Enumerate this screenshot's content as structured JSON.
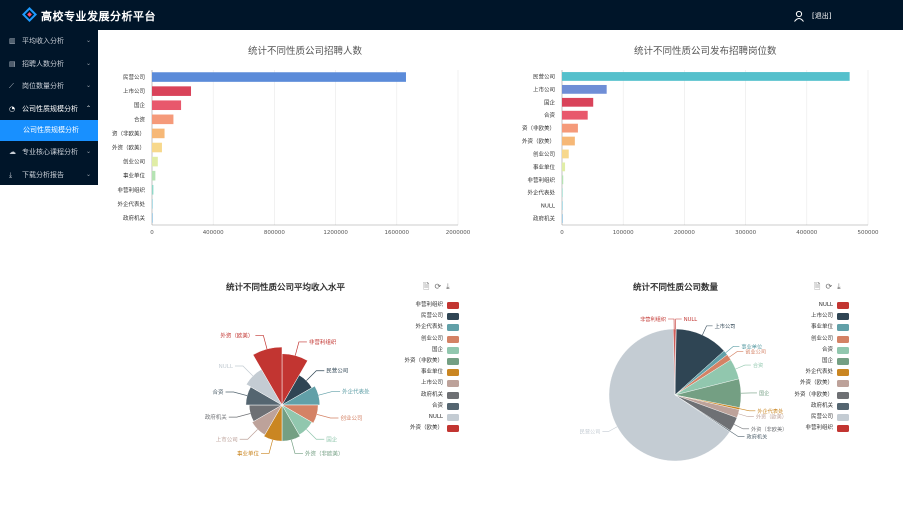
{
  "header": {
    "title": "高校专业发展分析平台",
    "logout_label": "[退出]"
  },
  "sidebar": {
    "items": [
      {
        "label": "平均收入分析",
        "icon": "bar-chart-icon"
      },
      {
        "label": "招聘人数分析",
        "icon": "chart-icon"
      },
      {
        "label": "岗位数量分析",
        "icon": "line-chart-icon"
      },
      {
        "label": "公司性质规模分析",
        "icon": "pie-chart-icon",
        "open": true,
        "children": [
          {
            "label": "公司性质规模分析",
            "active": true
          }
        ]
      },
      {
        "label": "专业核心课程分析",
        "icon": "cloud-icon"
      },
      {
        "label": "下载分析报告",
        "icon": "download-icon"
      }
    ]
  },
  "chart_data": [
    {
      "type": "bar",
      "title": "统计不同性质公司招聘人数",
      "categories": [
        "民营公司",
        "上市公司",
        "国企",
        "合资",
        "资（非欧美）",
        "外资（欧美）",
        "创业公司",
        "事业单位",
        "非营利组织",
        "外企代表处",
        "政府机关"
      ],
      "values": [
        1660000,
        255000,
        190000,
        140000,
        82000,
        65000,
        38000,
        22000,
        9000,
        4000,
        2000
      ],
      "colors": [
        "#5b8bd9",
        "#d9435a",
        "#e8586c",
        "#f59a7a",
        "#f6b877",
        "#f7d88c",
        "#e0eda6",
        "#b5e3b3",
        "#8fd8c8",
        "#7cc7d8",
        "#6fb0d8"
      ],
      "xticks": [
        "0",
        "400000",
        "800000",
        "1200000",
        "1600000",
        "2000000"
      ],
      "xlim": [
        0,
        2000000
      ]
    },
    {
      "type": "bar",
      "title": "统计不同性质公司发布招聘岗位数",
      "categories": [
        "民营公司",
        "上市公司",
        "国企",
        "合资",
        "资（非欧美）",
        "外资（欧美）",
        "创业公司",
        "事业单位",
        "非营利组织",
        "外企代表处",
        "NULL",
        "政府机关"
      ],
      "values": [
        470000,
        73000,
        51000,
        42000,
        26000,
        21000,
        11000,
        5000,
        2000,
        1000,
        500,
        300
      ],
      "colors": [
        "#55c0cc",
        "#6f8ed6",
        "#d9435a",
        "#e8586c",
        "#f59a7a",
        "#f6b877",
        "#f7d88c",
        "#e0eda6",
        "#b5e3b3",
        "#8fd8c8",
        "#7cc7d8",
        "#6fb0d8"
      ],
      "xticks": [
        "0",
        "100000",
        "200000",
        "300000",
        "400000",
        "500000"
      ],
      "xlim": [
        0,
        500000
      ]
    },
    {
      "type": "pie",
      "title": "统计不同性质公司平均收入水平",
      "slices": [
        {
          "name": "非营利组织",
          "value": 13,
          "color": "#c23531"
        },
        {
          "name": "民营公司",
          "value": 8,
          "color": "#2f4554"
        },
        {
          "name": "外企代表处",
          "value": 9,
          "color": "#61a0a8"
        },
        {
          "name": "创业公司",
          "value": 8.5,
          "color": "#d48265"
        },
        {
          "name": "国企",
          "value": 8,
          "color": "#91c7ae"
        },
        {
          "name": "外资（非欧美）",
          "value": 8.5,
          "color": "#749f83"
        },
        {
          "name": "事业单位",
          "value": 8.5,
          "color": "#ca8622"
        },
        {
          "name": "上市公司",
          "value": 8,
          "color": "#bda29a"
        },
        {
          "name": "政府机关",
          "value": 7.5,
          "color": "#6e7074"
        },
        {
          "name": "合资",
          "value": 8.5,
          "color": "#546570"
        },
        {
          "name": "NULL",
          "value": 10,
          "color": "#c4ccd3"
        },
        {
          "name": "外资（欧美）",
          "value": 15,
          "color": "#c23531"
        }
      ]
    },
    {
      "type": "pie",
      "title": "统计不同性质公司数量",
      "slices": [
        {
          "name": "NULL",
          "value": 0.3,
          "color": "#c23531"
        },
        {
          "name": "上市公司",
          "value": 13,
          "color": "#2f4554"
        },
        {
          "name": "事业单位",
          "value": 1.2,
          "color": "#61a0a8"
        },
        {
          "name": "创业公司",
          "value": 1.5,
          "color": "#d48265"
        },
        {
          "name": "合资",
          "value": 5,
          "color": "#91c7ae"
        },
        {
          "name": "国企",
          "value": 7,
          "color": "#749f83"
        },
        {
          "name": "外企代表处",
          "value": 0.5,
          "color": "#ca8622"
        },
        {
          "name": "外资（欧美）",
          "value": 2,
          "color": "#bda29a"
        },
        {
          "name": "外资（非欧美）",
          "value": 3.5,
          "color": "#6e7074"
        },
        {
          "name": "政府机关",
          "value": 0.3,
          "color": "#546570"
        },
        {
          "name": "民营公司",
          "value": 65,
          "color": "#c4ccd3"
        },
        {
          "name": "非营利组织",
          "value": 0.4,
          "color": "#c23531"
        }
      ]
    }
  ],
  "toolbox": {
    "save_icon": "save-image-icon",
    "restore_icon": "restore-icon",
    "download_icon": "download-icon"
  }
}
